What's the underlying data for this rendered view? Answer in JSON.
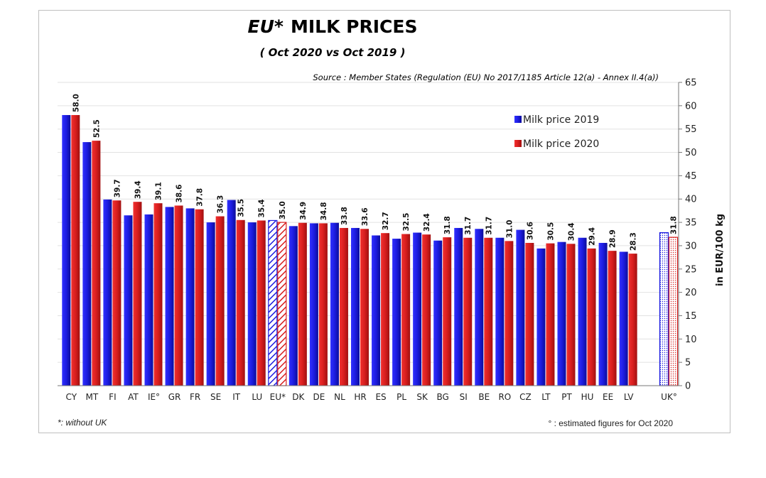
{
  "chart_data": {
    "type": "bar",
    "title_prefix": "EU*",
    "title_main": "MILK  PRICES",
    "subtitle": "( Oct 2020   vs   Oct 2019 )",
    "source": "Source : Member States (Regulation (EU) No 2017/1185 Article 12(a) - Annex II.4(a))",
    "ylabel": "in EUR/100 kg",
    "ylim": [
      0,
      65
    ],
    "yticks": [
      0,
      5,
      10,
      15,
      20,
      25,
      30,
      35,
      40,
      45,
      50,
      55,
      60,
      65
    ],
    "grid": true,
    "legend_position": "top-right",
    "categories": [
      "CY",
      "MT",
      "FI",
      "AT",
      "IE°",
      "GR",
      "FR",
      "SE",
      "IT",
      "LU",
      "EU*",
      "DK",
      "DE",
      "NL",
      "HR",
      "ES",
      "PL",
      "SK",
      "BG",
      "SI",
      "BE",
      "RO",
      "CZ",
      "LT",
      "PT",
      "HU",
      "EE",
      "LV",
      "UK°"
    ],
    "series": [
      {
        "name": "Milk price 2019",
        "color": "#1c1ce0",
        "values": [
          58.0,
          52.2,
          39.9,
          36.5,
          36.7,
          38.3,
          38.0,
          35.0,
          39.8,
          35.0,
          35.4,
          34.2,
          34.8,
          34.9,
          33.8,
          32.2,
          31.5,
          32.8,
          31.1,
          33.8,
          33.6,
          31.7,
          33.4,
          29.4,
          30.8,
          31.7,
          30.6,
          28.7,
          32.8
        ]
      },
      {
        "name": "Milk price 2020",
        "color": "#d81e1e",
        "values": [
          58.0,
          52.5,
          39.7,
          39.4,
          39.1,
          38.6,
          37.8,
          36.3,
          35.5,
          35.4,
          35.0,
          34.9,
          34.8,
          33.8,
          33.6,
          32.7,
          32.5,
          32.4,
          31.8,
          31.7,
          31.7,
          31.0,
          30.6,
          30.5,
          30.4,
          29.4,
          28.9,
          28.3,
          31.8
        ]
      }
    ],
    "data_labels_2020": [
      "58.0",
      "52.5",
      "39.7",
      "39.4",
      "39.1",
      "38.6",
      "37.8",
      "36.3",
      "35.5",
      "35.4",
      "35.0",
      "34.9",
      "34.8",
      "33.8",
      "33.6",
      "32.7",
      "32.5",
      "32.4",
      "31.8",
      "31.7",
      "31.7",
      "31.0",
      "30.6",
      "30.5",
      "30.4",
      "29.4",
      "28.9",
      "28.3",
      "31.8"
    ],
    "hatched_categories": [
      "EU*"
    ],
    "dotted_categories": [
      "UK°"
    ],
    "footnote_left": "*: without UK",
    "footnote_right": "° : estimated figures for Oct 2020"
  }
}
